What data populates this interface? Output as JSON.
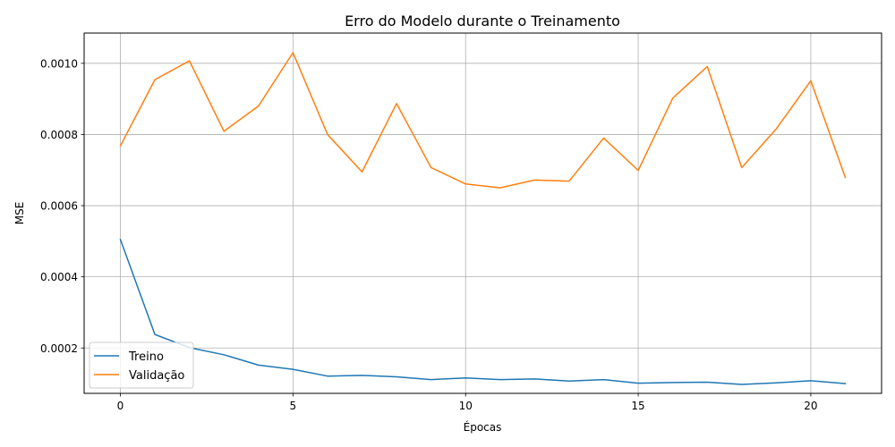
{
  "chart_data": {
    "type": "line",
    "title": "Erro do Modelo durante o Treinamento",
    "xlabel": "Épocas",
    "ylabel": "MSE",
    "x": [
      0,
      1,
      2,
      3,
      4,
      5,
      6,
      7,
      8,
      9,
      10,
      11,
      12,
      13,
      14,
      15,
      16,
      17,
      18,
      19,
      20,
      21
    ],
    "xlim": [
      -1.05,
      22.05
    ],
    "ylim": [
      7.25e-05,
      0.001085
    ],
    "xticks": [
      0,
      5,
      10,
      15,
      20
    ],
    "xtick_labels": [
      "0",
      "5",
      "10",
      "15",
      "20"
    ],
    "yticks": [
      0.0002,
      0.0004,
      0.0006,
      0.0008,
      0.001
    ],
    "ytick_labels": [
      "0.0002",
      "0.0004",
      "0.0006",
      "0.0008",
      "0.0010"
    ],
    "grid": true,
    "legend_position": "bottom-left",
    "series": [
      {
        "name": "Treino",
        "color": "#1f77b4",
        "values": [
          0.000505,
          0.000238,
          0.000201,
          0.000181,
          0.000152,
          0.00014,
          0.000121,
          0.000123,
          0.000119,
          0.000111,
          0.000116,
          0.000111,
          0.000113,
          0.000107,
          0.000111,
          0.000101,
          0.000103,
          0.000104,
          9.75e-05,
          0.000102,
          0.000108,
          0.0001
        ]
      },
      {
        "name": "Validação",
        "color": "#ff7f0e",
        "values": [
          0.000768,
          0.000954,
          0.001007,
          0.000809,
          0.00088,
          0.00103,
          0.0008,
          0.000695,
          0.000887,
          0.000707,
          0.000661,
          0.00065,
          0.000672,
          0.000669,
          0.00079,
          0.000699,
          0.000902,
          0.000991,
          0.000707,
          0.000816,
          0.000951,
          0.000679
        ]
      }
    ]
  }
}
